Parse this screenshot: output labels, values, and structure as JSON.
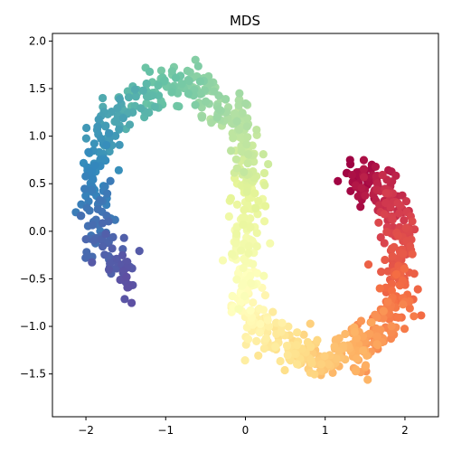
{
  "chart_data": {
    "type": "scatter",
    "title": "MDS",
    "xlabel": "",
    "ylabel": "",
    "xlim": [
      -2.42,
      2.42
    ],
    "ylim": [
      -1.95,
      2.08
    ],
    "x_ticks": [
      -2,
      -1,
      0,
      1,
      2
    ],
    "y_ticks": [
      -1.5,
      -1.0,
      -0.5,
      0.0,
      0.5,
      1.0,
      1.5,
      2.0
    ],
    "x_tick_labels": [
      "−2",
      "−1",
      "0",
      "1",
      "2"
    ],
    "y_tick_labels": [
      "−1.5",
      "−1.0",
      "−0.5",
      "0.0",
      "0.5",
      "1.0",
      "1.5",
      "2.0"
    ],
    "grid": false,
    "legend": "none",
    "colormap": "Spectral",
    "color_variable": "position along curve (0 = dark red end, 1 = purple end)",
    "curve_path": [
      {
        "t": 0.0,
        "x": 1.35,
        "y": 0.6
      },
      {
        "t": 0.05,
        "x": 1.7,
        "y": 0.45
      },
      {
        "t": 0.1,
        "x": 1.9,
        "y": 0.15
      },
      {
        "t": 0.15,
        "x": 1.95,
        "y": -0.25
      },
      {
        "t": 0.2,
        "x": 1.9,
        "y": -0.7
      },
      {
        "t": 0.25,
        "x": 1.7,
        "y": -1.05
      },
      {
        "t": 0.3,
        "x": 1.4,
        "y": -1.25
      },
      {
        "t": 0.35,
        "x": 1.0,
        "y": -1.35
      },
      {
        "t": 0.4,
        "x": 0.6,
        "y": -1.3
      },
      {
        "t": 0.45,
        "x": 0.2,
        "y": -1.05
      },
      {
        "t": 0.5,
        "x": 0.0,
        "y": -0.6
      },
      {
        "t": 0.55,
        "x": -0.05,
        "y": -0.1
      },
      {
        "t": 0.6,
        "x": 0.05,
        "y": 0.4
      },
      {
        "t": 0.65,
        "x": 0.05,
        "y": 0.85
      },
      {
        "t": 0.7,
        "x": -0.2,
        "y": 1.3
      },
      {
        "t": 0.75,
        "x": -0.65,
        "y": 1.55
      },
      {
        "t": 0.8,
        "x": -1.15,
        "y": 1.5
      },
      {
        "t": 0.85,
        "x": -1.65,
        "y": 1.2
      },
      {
        "t": 0.9,
        "x": -1.9,
        "y": 0.6
      },
      {
        "t": 0.95,
        "x": -1.85,
        "y": -0.05
      },
      {
        "t": 1.0,
        "x": -1.45,
        "y": -0.55
      }
    ],
    "point_count": 1000,
    "point_spread": 0.11,
    "colors": {
      "0.0": "#9e0142",
      "0.1": "#d53e4f",
      "0.2": "#f46d43",
      "0.3": "#fdae61",
      "0.4": "#fee08b",
      "0.5": "#ffffbf",
      "0.6": "#e6f598",
      "0.7": "#abdda4",
      "0.8": "#66c2a5",
      "0.9": "#3288bd",
      "1.0": "#5e4fa2"
    }
  }
}
